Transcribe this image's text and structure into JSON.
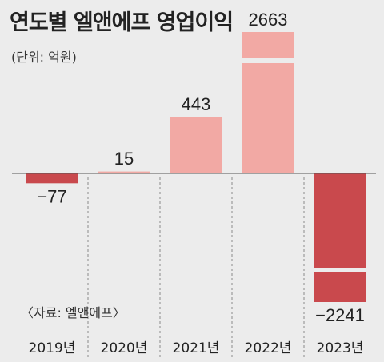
{
  "title": "연도별 엘앤에프 영업이익",
  "unit_label": "(단위: 억원)",
  "source": "〈자료: 엘앤에프〉",
  "colors": {
    "background": "#ececec",
    "positive_bar": "#f2a9a4",
    "negative_bar": "#c9494d",
    "grid": "#8a8a8a",
    "axis": "#555555",
    "text": "#222222"
  },
  "chart_data": {
    "type": "bar",
    "title": "연도별 엘앤에프 영업이익",
    "unit": "(단위: 억원)",
    "categories": [
      "2019년",
      "2020년",
      "2021년",
      "2022년",
      "2023년"
    ],
    "values": [
      -77,
      15,
      443,
      2663,
      -2241
    ],
    "value_labels": [
      "−77",
      "15",
      "443",
      "2663",
      "−2241"
    ],
    "axis_breaks": [
      2663,
      -2241
    ],
    "grid": "vertical dashed separators",
    "legend": "none"
  }
}
